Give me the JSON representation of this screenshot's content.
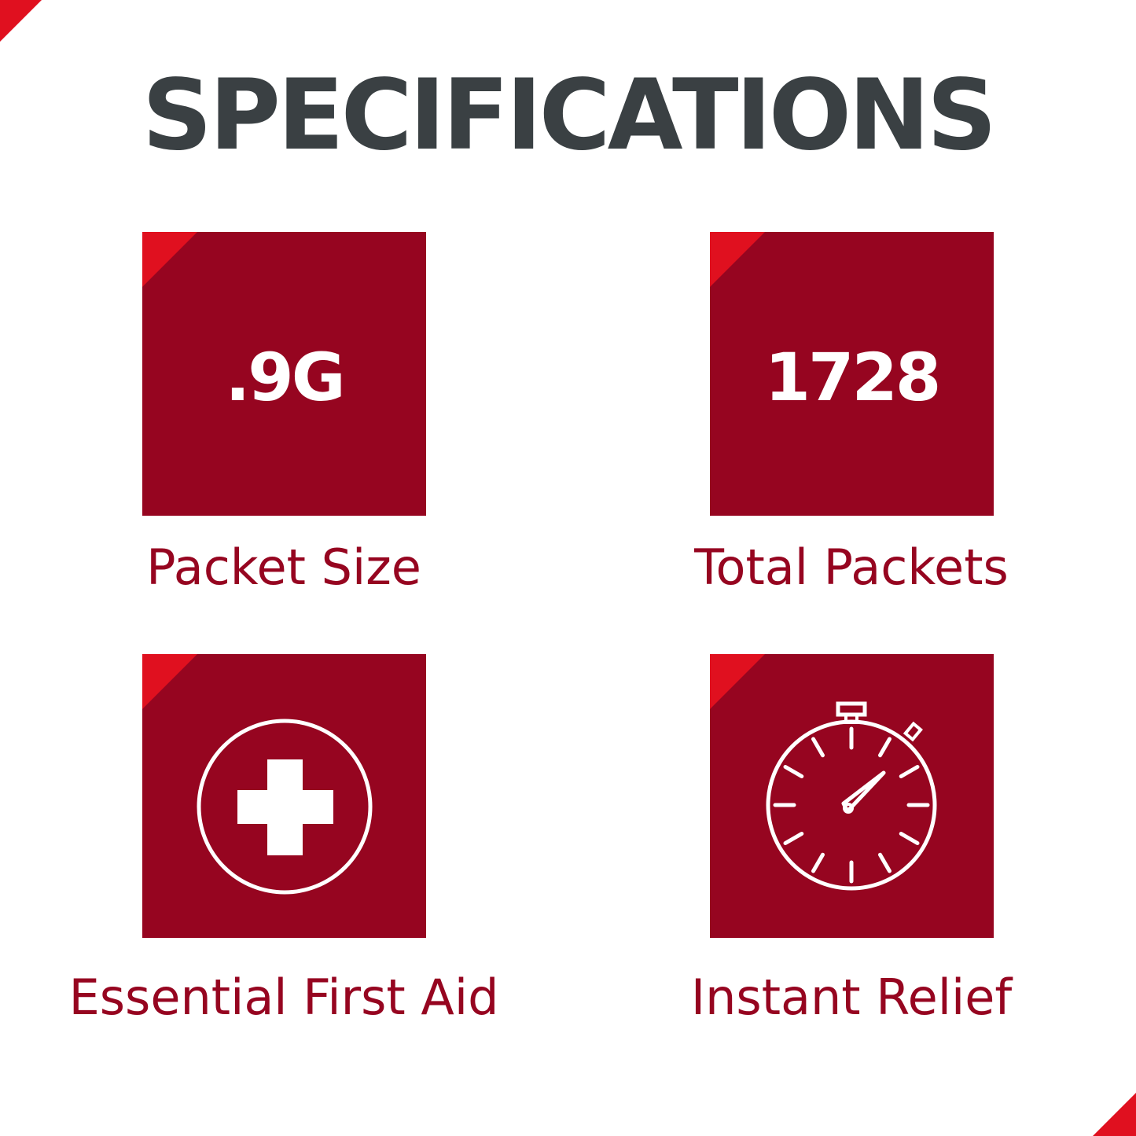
{
  "colors": {
    "accent": "#e0101f",
    "tile": "#960520",
    "title": "#3a4043"
  },
  "title": "SPECIFICATIONS",
  "specs": [
    {
      "value": ".9G",
      "label": "Packet Size"
    },
    {
      "value": "1728",
      "label": "Total Packets"
    },
    {
      "icon": "first-aid-cross-icon",
      "label": "Essential First Aid"
    },
    {
      "icon": "stopwatch-icon",
      "label": "Instant Relief"
    }
  ]
}
